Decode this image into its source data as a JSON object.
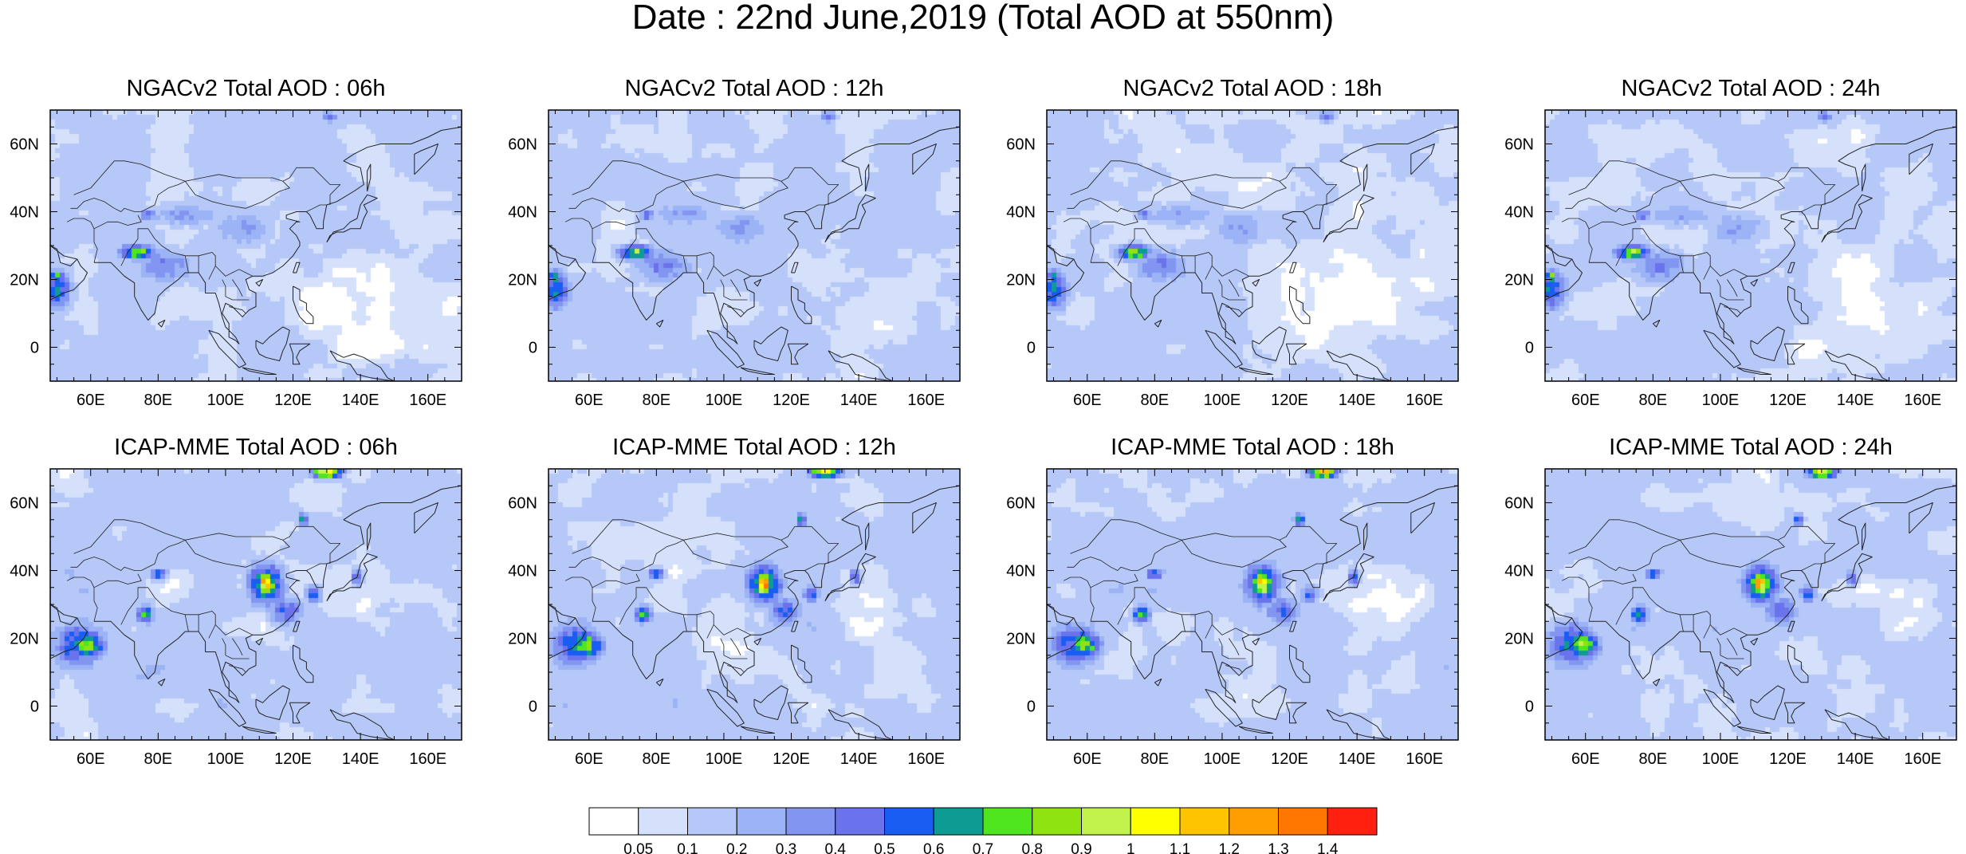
{
  "figure": {
    "title": "Date : 22nd June,2019 (Total AOD at 550nm)"
  },
  "panels": [
    {
      "title": "NGACv2 Total AOD : 06h",
      "model": "ngac"
    },
    {
      "title": "NGACv2 Total AOD : 12h",
      "model": "ngac"
    },
    {
      "title": "NGACv2 Total AOD : 18h",
      "model": "ngac"
    },
    {
      "title": "NGACv2 Total AOD : 24h",
      "model": "ngac"
    },
    {
      "title": "ICAP-MME Total AOD : 06h",
      "model": "icap"
    },
    {
      "title": "ICAP-MME Total AOD : 12h",
      "model": "icap"
    },
    {
      "title": "ICAP-MME Total AOD : 18h",
      "model": "icap"
    },
    {
      "title": "ICAP-MME Total AOD : 24h",
      "model": "icap"
    }
  ],
  "axes": {
    "lon_range": [
      48,
      170
    ],
    "lat_range": [
      -10,
      70
    ],
    "lon_ticks": [
      {
        "value": 60,
        "label": "60E"
      },
      {
        "value": 80,
        "label": "80E"
      },
      {
        "value": 100,
        "label": "100E"
      },
      {
        "value": 120,
        "label": "120E"
      },
      {
        "value": 140,
        "label": "140E"
      },
      {
        "value": 160,
        "label": "160E"
      }
    ],
    "lat_ticks": [
      {
        "value": 0,
        "label": "0"
      },
      {
        "value": 20,
        "label": "20N"
      },
      {
        "value": 40,
        "label": "40N"
      },
      {
        "value": 60,
        "label": "60N"
      }
    ]
  },
  "colorbar": {
    "colors": [
      "#ffffff",
      "#d5e0fb",
      "#b6c8f8",
      "#9cb3f5",
      "#8296f1",
      "#6a72ec",
      "#1a5df2",
      "#0e9b93",
      "#4fe61f",
      "#8ee311",
      "#c1f34c",
      "#ffff00",
      "#ffc400",
      "#ff9e00",
      "#ff7700",
      "#ff2010"
    ],
    "labels": [
      "0.05",
      "0.1",
      "0.2",
      "0.3",
      "0.4",
      "0.5",
      "0.6",
      "0.7",
      "0.8",
      "0.9",
      "1",
      "1.1",
      "1.2",
      "1.3",
      "1.4"
    ]
  },
  "chart_data": {
    "type": "heatmap",
    "variable": "Total AOD at 550nm",
    "x_range": [
      48,
      170
    ],
    "y_range": [
      -10,
      70
    ],
    "levels": [
      0.05,
      0.1,
      0.2,
      0.3,
      0.4,
      0.5,
      0.6,
      0.7,
      0.8,
      0.9,
      1,
      1.1,
      1.2,
      1.3,
      1.4
    ],
    "features": {
      "ngac": [
        {
          "lon": 50,
          "lat": 17,
          "rx": 5,
          "ry": 7,
          "v": 0.6
        },
        {
          "lon": 50,
          "lat": 21,
          "rx": 2,
          "ry": 2,
          "v": 0.8
        },
        {
          "lon": 74,
          "lat": 28,
          "rx": 6,
          "ry": 2.5,
          "v": 0.85
        },
        {
          "lon": 77,
          "lat": 39,
          "rx": 3,
          "ry": 1.5,
          "v": 0.5
        },
        {
          "lon": 82,
          "lat": 24,
          "rx": 10,
          "ry": 6,
          "v": 0.4
        },
        {
          "lon": 105,
          "lat": 35,
          "rx": 10,
          "ry": 6,
          "v": 0.32
        },
        {
          "lon": 88,
          "lat": 39,
          "rx": 14,
          "ry": 4,
          "v": 0.3
        },
        {
          "lon": 131,
          "lat": 68,
          "rx": 3,
          "ry": 2,
          "v": 0.45
        }
      ],
      "icap": [
        {
          "lon": 59,
          "lat": 18,
          "rx": 6,
          "ry": 5,
          "v": 0.82
        },
        {
          "lon": 56,
          "lat": 18,
          "rx": 9,
          "ry": 8,
          "v": 0.58
        },
        {
          "lon": 112,
          "lat": 36,
          "rx": 3,
          "ry": 4,
          "v": 1.25
        },
        {
          "lon": 112,
          "lat": 36,
          "rx": 6,
          "ry": 7,
          "v": 0.78
        },
        {
          "lon": 76,
          "lat": 27,
          "rx": 3,
          "ry": 3,
          "v": 0.72
        },
        {
          "lon": 80,
          "lat": 39,
          "rx": 3,
          "ry": 2,
          "v": 0.6
        },
        {
          "lon": 130,
          "lat": 69,
          "rx": 5,
          "ry": 2,
          "v": 1.1
        },
        {
          "lon": 126,
          "lat": 33,
          "rx": 3,
          "ry": 3,
          "v": 0.55
        },
        {
          "lon": 139,
          "lat": 38,
          "rx": 2,
          "ry": 3,
          "v": 0.52
        },
        {
          "lon": 123,
          "lat": 55,
          "rx": 2,
          "ry": 2,
          "v": 0.7
        },
        {
          "lon": 118,
          "lat": 28,
          "rx": 6,
          "ry": 5,
          "v": 0.5
        }
      ]
    }
  },
  "coastlines": [
    [
      [
        48,
        30
      ],
      [
        52,
        27
      ],
      [
        56,
        26
      ],
      [
        57,
        24
      ],
      [
        59,
        22
      ],
      [
        58,
        20
      ],
      [
        55,
        17
      ],
      [
        52,
        16
      ],
      [
        48,
        14
      ],
      [
        45,
        13
      ],
      [
        43,
        14
      ]
    ],
    [
      [
        48,
        30
      ],
      [
        50,
        29
      ],
      [
        51,
        25
      ],
      [
        54,
        24
      ],
      [
        56,
        26
      ]
    ],
    [
      [
        61,
        25
      ],
      [
        66,
        25
      ],
      [
        68,
        23
      ],
      [
        70,
        21
      ],
      [
        73,
        19
      ],
      [
        73,
        15
      ],
      [
        75,
        11
      ],
      [
        77,
        8
      ],
      [
        79,
        10
      ],
      [
        80,
        15
      ],
      [
        82,
        17
      ],
      [
        86,
        20
      ],
      [
        88,
        22
      ],
      [
        90,
        22
      ],
      [
        92,
        22
      ],
      [
        94,
        19
      ],
      [
        94,
        16
      ],
      [
        97,
        16
      ],
      [
        98,
        13
      ],
      [
        99,
        9
      ],
      [
        100,
        6
      ],
      [
        103,
        3
      ],
      [
        104,
        1
      ],
      [
        103,
        2
      ],
      [
        101,
        3
      ],
      [
        101,
        7
      ],
      [
        99,
        10
      ],
      [
        100,
        13
      ],
      [
        102,
        12
      ],
      [
        105,
        9
      ],
      [
        107,
        11
      ],
      [
        109,
        12
      ],
      [
        109,
        16
      ],
      [
        107,
        17
      ],
      [
        106,
        20
      ],
      [
        108,
        21
      ],
      [
        111,
        21
      ],
      [
        114,
        22
      ],
      [
        117,
        24
      ],
      [
        120,
        27
      ],
      [
        122,
        30
      ],
      [
        122,
        31
      ],
      [
        121,
        33
      ],
      [
        119,
        35
      ],
      [
        121,
        37
      ],
      [
        122,
        37
      ],
      [
        118,
        38
      ],
      [
        118,
        39
      ],
      [
        121,
        40
      ],
      [
        122,
        40
      ],
      [
        124,
        40
      ],
      [
        125,
        39
      ],
      [
        126,
        37
      ],
      [
        127,
        35
      ],
      [
        129,
        35
      ],
      [
        129,
        37
      ],
      [
        130,
        42
      ],
      [
        133,
        43
      ],
      [
        138,
        46
      ],
      [
        141,
        48
      ],
      [
        140,
        53
      ],
      [
        137,
        54
      ],
      [
        135,
        55
      ],
      [
        138,
        57
      ],
      [
        142,
        59
      ],
      [
        146,
        60
      ],
      [
        150,
        60
      ],
      [
        155,
        60
      ],
      [
        160,
        62
      ],
      [
        164,
        64
      ],
      [
        170,
        65
      ]
    ],
    [
      [
        80,
        7
      ],
      [
        82,
        8
      ],
      [
        81,
        6
      ],
      [
        80,
        7
      ]
    ],
    [
      [
        95,
        5
      ],
      [
        98,
        4
      ],
      [
        102,
        0
      ],
      [
        104,
        -2
      ],
      [
        106,
        -5
      ],
      [
        104,
        -6
      ],
      [
        101,
        -3
      ],
      [
        98,
        0
      ],
      [
        95,
        5
      ]
    ],
    [
      [
        105,
        -6
      ],
      [
        110,
        -7
      ],
      [
        115,
        -8
      ],
      [
        112,
        -8
      ],
      [
        107,
        -7
      ],
      [
        105,
        -6
      ]
    ],
    [
      [
        109,
        2
      ],
      [
        111,
        1
      ],
      [
        113,
        3
      ],
      [
        117,
        6
      ],
      [
        119,
        5
      ],
      [
        118,
        1
      ],
      [
        117,
        -1
      ],
      [
        116,
        -4
      ],
      [
        112,
        -3
      ],
      [
        110,
        -2
      ],
      [
        109,
        0
      ],
      [
        109,
        2
      ]
    ],
    [
      [
        119,
        1
      ],
      [
        121,
        1
      ],
      [
        125,
        1
      ],
      [
        122,
        -1
      ],
      [
        121,
        -3
      ],
      [
        122,
        -5
      ],
      [
        120,
        -5
      ],
      [
        120,
        -2
      ],
      [
        119,
        1
      ]
    ],
    [
      [
        131,
        -1
      ],
      [
        135,
        -3
      ],
      [
        138,
        -2
      ],
      [
        141,
        -3
      ],
      [
        146,
        -6
      ],
      [
        148,
        -9
      ],
      [
        150,
        -10
      ],
      [
        143,
        -9
      ],
      [
        139,
        -8
      ],
      [
        137,
        -5
      ],
      [
        133,
        -4
      ],
      [
        131,
        -1
      ]
    ],
    [
      [
        120,
        18
      ],
      [
        122,
        17
      ],
      [
        122,
        14
      ],
      [
        124,
        13
      ],
      [
        124,
        11
      ],
      [
        126,
        9
      ],
      [
        126,
        7
      ],
      [
        124,
        7
      ],
      [
        122,
        9
      ],
      [
        121,
        11
      ],
      [
        120,
        14
      ],
      [
        120,
        18
      ]
    ],
    [
      [
        120,
        22
      ],
      [
        121,
        25
      ],
      [
        122,
        25
      ],
      [
        121,
        22
      ],
      [
        120,
        22
      ]
    ],
    [
      [
        130,
        31
      ],
      [
        131,
        33
      ],
      [
        133,
        34
      ],
      [
        135,
        34
      ],
      [
        137,
        35
      ],
      [
        140,
        35
      ],
      [
        141,
        38
      ],
      [
        142,
        40
      ],
      [
        141,
        42
      ],
      [
        143,
        43
      ],
      [
        145,
        44
      ],
      [
        142,
        45
      ],
      [
        140,
        42
      ],
      [
        139,
        38
      ],
      [
        137,
        37
      ],
      [
        135,
        35
      ],
      [
        132,
        34
      ],
      [
        130,
        31
      ]
    ],
    [
      [
        142,
        46
      ],
      [
        143,
        50
      ],
      [
        143,
        54
      ],
      [
        142,
        52
      ],
      [
        142,
        46
      ]
    ],
    [
      [
        156,
        51
      ],
      [
        158,
        53
      ],
      [
        160,
        55
      ],
      [
        162,
        57
      ],
      [
        163,
        60
      ],
      [
        158,
        58
      ],
      [
        156,
        57
      ],
      [
        156,
        51
      ]
    ],
    [
      [
        110,
        18
      ],
      [
        111,
        20
      ],
      [
        109,
        19
      ],
      [
        110,
        18
      ]
    ]
  ],
  "borders": [
    [
      [
        61,
        25
      ],
      [
        62,
        29
      ],
      [
        61,
        31
      ],
      [
        61,
        35
      ]
    ],
    [
      [
        69,
        24
      ],
      [
        71,
        28
      ],
      [
        74,
        32
      ],
      [
        74,
        35
      ],
      [
        77,
        35
      ],
      [
        79,
        32
      ],
      [
        81,
        30
      ],
      [
        84,
        28
      ],
      [
        88,
        27
      ],
      [
        92,
        27
      ],
      [
        96,
        28
      ],
      [
        97,
        27
      ],
      [
        97,
        24
      ],
      [
        95,
        20
      ]
    ],
    [
      [
        88,
        27
      ],
      [
        89,
        22
      ]
    ],
    [
      [
        92,
        27
      ],
      [
        92,
        22
      ]
    ],
    [
      [
        97,
        24
      ],
      [
        100,
        21
      ],
      [
        102,
        22
      ],
      [
        104,
        23
      ],
      [
        106,
        22
      ],
      [
        108,
        21
      ]
    ],
    [
      [
        99,
        20
      ],
      [
        100,
        18
      ],
      [
        100,
        15
      ],
      [
        102,
        14
      ],
      [
        105,
        14
      ],
      [
        107,
        14
      ]
    ],
    [
      [
        101,
        12
      ],
      [
        105,
        11
      ],
      [
        106,
        10
      ]
    ],
    [
      [
        102,
        20
      ],
      [
        104,
        17
      ],
      [
        105,
        15
      ]
    ],
    [
      [
        61,
        35
      ],
      [
        60,
        37
      ],
      [
        58,
        38
      ],
      [
        55,
        38
      ],
      [
        53,
        37
      ]
    ],
    [
      [
        61,
        35
      ],
      [
        65,
        37
      ],
      [
        68,
        37
      ],
      [
        71,
        36
      ],
      [
        75,
        37
      ],
      [
        74,
        39
      ]
    ],
    [
      [
        75,
        40
      ],
      [
        79,
        42
      ],
      [
        80,
        45
      ],
      [
        83,
        47
      ],
      [
        86,
        48
      ],
      [
        88,
        49
      ],
      [
        91,
        45
      ],
      [
        96,
        43
      ],
      [
        100,
        42
      ],
      [
        106,
        41
      ],
      [
        111,
        43
      ],
      [
        116,
        46
      ],
      [
        119,
        47
      ],
      [
        117,
        49
      ],
      [
        119,
        50
      ],
      [
        121,
        53
      ],
      [
        126,
        53
      ],
      [
        131,
        48
      ],
      [
        134,
        48
      ],
      [
        131,
        45
      ],
      [
        131,
        42
      ]
    ],
    [
      [
        88,
        49
      ],
      [
        93,
        50
      ],
      [
        98,
        51
      ],
      [
        103,
        50
      ],
      [
        107,
        50
      ],
      [
        111,
        50
      ],
      [
        114,
        50
      ],
      [
        117,
        49
      ]
    ],
    [
      [
        54,
        41
      ],
      [
        56,
        41
      ],
      [
        58,
        43
      ],
      [
        61,
        44
      ],
      [
        64,
        43
      ],
      [
        67,
        41
      ],
      [
        69,
        40
      ],
      [
        70,
        41
      ],
      [
        73,
        40
      ],
      [
        75,
        40
      ]
    ],
    [
      [
        55,
        45
      ],
      [
        60,
        47
      ],
      [
        67,
        55
      ],
      [
        70,
        55
      ],
      [
        75,
        54
      ],
      [
        82,
        51
      ],
      [
        85,
        50
      ],
      [
        88,
        49
      ]
    ],
    [
      [
        124,
        40
      ],
      [
        126,
        41
      ],
      [
        128,
        42
      ],
      [
        130,
        42
      ]
    ]
  ]
}
